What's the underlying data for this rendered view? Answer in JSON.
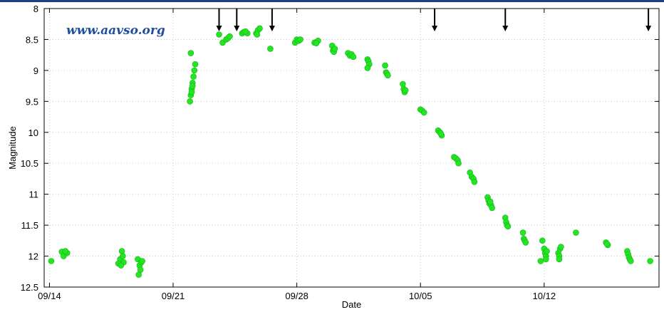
{
  "chart_data": {
    "type": "scatter",
    "watermark": "www.aavso.org",
    "xlabel": "Date",
    "ylabel": "Magnitude",
    "x_ticks": [
      {
        "day": 0,
        "label": "09/14"
      },
      {
        "day": 7,
        "label": "09/21"
      },
      {
        "day": 14,
        "label": "09/28"
      },
      {
        "day": 21,
        "label": "10/05"
      },
      {
        "day": 28,
        "label": "10/12"
      }
    ],
    "y_ticks": [
      "8",
      "8.5",
      "9",
      "9.5",
      "10",
      "10.5",
      "11",
      "11.5",
      "12",
      "12.5"
    ],
    "xlim": [
      -0.3,
      34.5
    ],
    "ylim": [
      8,
      12.5
    ],
    "y_inverted": true,
    "grid": true,
    "marker_color": "#22e622",
    "arrow_color": "#000000",
    "upper_limit_arrows_day": [
      9.6,
      10.6,
      12.6,
      21.8,
      25.8,
      33.9
    ],
    "series": [
      {
        "points": [
          [
            0.1,
            12.08
          ],
          [
            0.7,
            11.93
          ],
          [
            0.8,
            12.0
          ],
          [
            1.0,
            11.95
          ],
          [
            0.9,
            11.92
          ],
          [
            4.1,
            11.92
          ],
          [
            4.0,
            12.05
          ],
          [
            4.2,
            12.1
          ],
          [
            3.9,
            12.12
          ],
          [
            4.05,
            12.15
          ],
          [
            4.15,
            12.0
          ],
          [
            5.0,
            12.05
          ],
          [
            5.1,
            12.15
          ],
          [
            5.2,
            12.1
          ],
          [
            5.15,
            12.22
          ],
          [
            5.25,
            12.08
          ],
          [
            5.05,
            12.3
          ],
          [
            8.0,
            8.72
          ],
          [
            7.95,
            9.5
          ],
          [
            8.0,
            9.4
          ],
          [
            8.05,
            9.3
          ],
          [
            8.1,
            9.2
          ],
          [
            8.15,
            9.1
          ],
          [
            8.2,
            9.0
          ],
          [
            8.25,
            8.9
          ],
          [
            8.1,
            9.25
          ],
          [
            8.05,
            9.35
          ],
          [
            9.6,
            8.42
          ],
          [
            9.8,
            8.55
          ],
          [
            10.0,
            8.5
          ],
          [
            10.1,
            8.48
          ],
          [
            10.2,
            8.45
          ],
          [
            10.9,
            8.4
          ],
          [
            11.0,
            8.38
          ],
          [
            11.2,
            8.4
          ],
          [
            11.1,
            8.37
          ],
          [
            11.7,
            8.4
          ],
          [
            11.8,
            8.35
          ],
          [
            11.9,
            8.32
          ],
          [
            11.75,
            8.42
          ],
          [
            12.5,
            8.65
          ],
          [
            13.9,
            8.55
          ],
          [
            14.0,
            8.5
          ],
          [
            14.1,
            8.52
          ],
          [
            14.2,
            8.5
          ],
          [
            15.0,
            8.55
          ],
          [
            15.2,
            8.52
          ],
          [
            15.1,
            8.56
          ],
          [
            16.0,
            8.6
          ],
          [
            16.05,
            8.68
          ],
          [
            16.1,
            8.7
          ],
          [
            16.15,
            8.65
          ],
          [
            16.9,
            8.72
          ],
          [
            17.0,
            8.76
          ],
          [
            17.1,
            8.74
          ],
          [
            17.2,
            8.78
          ],
          [
            18.0,
            8.82
          ],
          [
            18.05,
            8.85
          ],
          [
            18.1,
            8.9
          ],
          [
            18.0,
            8.96
          ],
          [
            19.0,
            8.92
          ],
          [
            19.05,
            9.03
          ],
          [
            19.1,
            9.05
          ],
          [
            19.15,
            9.08
          ],
          [
            20.0,
            9.22
          ],
          [
            20.05,
            9.3
          ],
          [
            20.1,
            9.35
          ],
          [
            20.15,
            9.32
          ],
          [
            21.0,
            9.63
          ],
          [
            21.1,
            9.65
          ],
          [
            21.2,
            9.68
          ],
          [
            22.0,
            9.97
          ],
          [
            22.1,
            10.0
          ],
          [
            22.2,
            10.05
          ],
          [
            22.15,
            10.02
          ],
          [
            22.9,
            10.4
          ],
          [
            23.0,
            10.42
          ],
          [
            23.1,
            10.45
          ],
          [
            23.15,
            10.5
          ],
          [
            23.8,
            10.65
          ],
          [
            23.9,
            10.72
          ],
          [
            24.0,
            10.75
          ],
          [
            24.05,
            10.8
          ],
          [
            24.8,
            11.05
          ],
          [
            24.85,
            11.1
          ],
          [
            24.9,
            11.15
          ],
          [
            25.0,
            11.18
          ],
          [
            25.05,
            11.22
          ],
          [
            24.95,
            11.12
          ],
          [
            25.8,
            11.38
          ],
          [
            25.85,
            11.45
          ],
          [
            25.9,
            11.5
          ],
          [
            25.95,
            11.52
          ],
          [
            26.8,
            11.62
          ],
          [
            26.85,
            11.72
          ],
          [
            26.9,
            11.75
          ],
          [
            26.95,
            11.78
          ],
          [
            27.8,
            12.08
          ],
          [
            27.9,
            11.75
          ],
          [
            28.0,
            11.88
          ],
          [
            28.05,
            11.95
          ],
          [
            28.1,
            12.0
          ],
          [
            28.15,
            11.92
          ],
          [
            28.1,
            12.05
          ],
          [
            28.8,
            11.95
          ],
          [
            28.85,
            12.0
          ],
          [
            28.9,
            11.88
          ],
          [
            28.95,
            11.85
          ],
          [
            28.85,
            12.05
          ],
          [
            29.8,
            11.62
          ],
          [
            31.5,
            11.78
          ],
          [
            31.6,
            11.82
          ],
          [
            31.55,
            11.8
          ],
          [
            32.7,
            11.92
          ],
          [
            32.75,
            11.97
          ],
          [
            32.8,
            12.02
          ],
          [
            32.85,
            12.05
          ],
          [
            32.9,
            12.08
          ],
          [
            34.0,
            12.08
          ]
        ]
      }
    ]
  }
}
